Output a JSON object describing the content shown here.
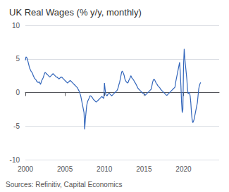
{
  "chart_data": {
    "type": "line",
    "title": "UK Real Wages (% y/y, monthly)",
    "annotation": "Sources: Refinitiv, Capital Economics",
    "color": "#3366bb",
    "grid": true,
    "xlim": [
      2000.0,
      2024.5
    ],
    "xticks": [
      2000,
      2005,
      2010,
      2015,
      2020
    ],
    "ylim": [
      -10,
      10
    ],
    "yticks": [
      -10,
      -5,
      0,
      5,
      10
    ],
    "x": [
      2000,
      2000.0833333333333,
      2000.1666666666667,
      2000.25,
      2000.3333333333333,
      2000.4166666666667,
      2000.5,
      2000.5833333333333,
      2000.6666666666667,
      2000.75,
      2000.8333333333333,
      2000.9166666666667,
      2001,
      2001.0833333333333,
      2001.1666666666667,
      2001.25,
      2001.3333333333333,
      2001.4166666666667,
      2001.5,
      2001.5833333333333,
      2001.6666666666667,
      2001.75,
      2001.8333333333333,
      2001.9166666666667,
      2002,
      2002.0833333333333,
      2002.1666666666667,
      2002.25,
      2002.3333333333333,
      2002.4166666666667,
      2002.5,
      2002.5833333333333,
      2002.6666666666667,
      2002.75,
      2002.8333333333333,
      2002.9166666666667,
      2003,
      2003.0833333333333,
      2003.1666666666667,
      2003.25,
      2003.3333333333333,
      2003.4166666666667,
      2003.5,
      2003.5833333333333,
      2003.6666666666667,
      2003.75,
      2003.8333333333333,
      2003.9166666666667,
      2004,
      2004.0833333333333,
      2004.1666666666667,
      2004.25,
      2004.3333333333333,
      2004.4166666666667,
      2004.5,
      2004.5833333333333,
      2004.6666666666667,
      2004.75,
      2004.8333333333333,
      2004.9166666666667,
      2005,
      2005.0833333333333,
      2005.1666666666667,
      2005.25,
      2005.3333333333333,
      2005.4166666666667,
      2005.5,
      2005.5833333333333,
      2005.6666666666667,
      2005.75,
      2005.8333333333333,
      2005.9166666666667,
      2006,
      2006.0833333333333,
      2006.1666666666667,
      2006.25,
      2006.3333333333333,
      2006.4166666666667,
      2006.5,
      2006.5833333333333,
      2006.6666666666667,
      2006.75,
      2006.8333333333333,
      2006.9166666666667,
      2007,
      2007.0833333333333,
      2007.1666666666667,
      2007.25,
      2007.3333333333333,
      2007.4166666666667,
      2007.5,
      2007.5833333333333,
      2007.6666666666667,
      2007.75,
      2007.8333333333333,
      2007.9166666666667,
      2008,
      2008.0833333333333,
      2008.1666666666667,
      2008.25,
      2008.3333333333333,
      2008.4166666666667,
      2008.5,
      2008.5833333333333,
      2008.6666666666667,
      2008.75,
      2008.8333333333333,
      2008.9166666666667,
      2009,
      2009.0833333333333,
      2009.1666666666667,
      2009.25,
      2009.3333333333333,
      2009.4166666666667,
      2009.5,
      2009.5833333333333,
      2009.6666666666667,
      2009.75,
      2009.8333333333333,
      2009.9166666666667,
      2010,
      2010.0833333333333,
      2010.1666666666667,
      2010.25,
      2010.3333333333333,
      2010.4166666666667,
      2010.5,
      2010.5833333333333,
      2010.6666666666667,
      2010.75,
      2010.8333333333333,
      2010.9166666666667,
      2011,
      2011.0833333333333,
      2011.1666666666667,
      2011.25,
      2011.3333333333333,
      2011.4166666666667,
      2011.5,
      2011.5833333333333,
      2011.6666666666667,
      2011.75,
      2011.8333333333333,
      2011.9166666666667,
      2012,
      2012.0833333333333,
      2012.1666666666667,
      2012.25,
      2012.3333333333333,
      2012.4166666666667,
      2012.5,
      2012.5833333333333,
      2012.6666666666667,
      2012.75,
      2012.8333333333333,
      2012.9166666666667,
      2013,
      2013.0833333333333,
      2013.1666666666667,
      2013.25,
      2013.3333333333333,
      2013.4166666666667,
      2013.5,
      2013.5833333333333,
      2013.6666666666667,
      2013.75,
      2013.8333333333333,
      2013.9166666666667,
      2014,
      2014.0833333333333,
      2014.1666666666667,
      2014.25,
      2014.3333333333333,
      2014.4166666666667,
      2014.5,
      2014.5833333333333,
      2014.6666666666667,
      2014.75,
      2014.8333333333333,
      2014.9166666666667,
      2015,
      2015.0833333333333,
      2015.1666666666667,
      2015.25,
      2015.3333333333333,
      2015.4166666666667,
      2015.5,
      2015.5833333333333,
      2015.6666666666667,
      2015.75,
      2015.8333333333333,
      2015.9166666666667,
      2016,
      2016.0833333333333,
      2016.1666666666667,
      2016.25,
      2016.3333333333333,
      2016.4166666666667,
      2016.5,
      2016.5833333333333,
      2016.6666666666667,
      2016.75,
      2016.8333333333333,
      2016.9166666666667,
      2017,
      2017.0833333333333,
      2017.1666666666667,
      2017.25,
      2017.3333333333333,
      2017.4166666666667,
      2017.5,
      2017.5833333333333,
      2017.6666666666667,
      2017.75,
      2017.8333333333333,
      2017.9166666666667,
      2018,
      2018.0833333333333,
      2018.1666666666667,
      2018.25,
      2018.3333333333333,
      2018.4166666666667,
      2018.5,
      2018.5833333333333,
      2018.6666666666667,
      2018.75,
      2018.8333333333333,
      2018.9166666666667,
      2019,
      2019.0833333333333,
      2019.1666666666667,
      2019.25,
      2019.3333333333333,
      2019.4166666666667,
      2019.5,
      2019.5833333333333,
      2019.6666666666667,
      2019.75,
      2019.8333333333333,
      2019.9166666666667,
      2020,
      2020.0833333333333,
      2020.1666666666667,
      2020.25,
      2020.3333333333333,
      2020.4166666666667,
      2020.5,
      2020.5833333333333,
      2020.6666666666667,
      2020.75,
      2020.8333333333333,
      2020.9166666666667,
      2021,
      2021.0833333333333,
      2021.1666666666667,
      2021.25,
      2021.3333333333333,
      2021.4166666666667,
      2021.5,
      2021.5833333333333,
      2021.6666666666667,
      2021.75,
      2021.8333333333333,
      2021.9166666666667,
      2022,
      2022.0833333333333,
      2022.1666666666667
    ],
    "values": [
      4.8,
      5.3,
      5.2,
      5.0,
      4.6,
      4.2,
      3.8,
      3.5,
      3.3,
      3.1,
      3.0,
      2.8,
      2.5,
      2.3,
      2.1,
      2.0,
      1.9,
      1.7,
      1.6,
      1.5,
      1.5,
      1.6,
      1.4,
      1.2,
      1.5,
      1.8,
      2.0,
      2.2,
      2.5,
      2.8,
      3.0,
      2.9,
      2.8,
      2.7,
      2.6,
      2.5,
      2.4,
      2.3,
      2.4,
      2.5,
      2.6,
      2.7,
      2.8,
      2.7,
      2.6,
      2.5,
      2.4,
      2.3,
      2.3,
      2.2,
      2.1,
      2.0,
      2.1,
      2.2,
      2.3,
      2.3,
      2.2,
      2.1,
      2.0,
      1.9,
      1.8,
      1.7,
      1.6,
      1.5,
      1.4,
      1.5,
      1.6,
      1.7,
      1.8,
      1.7,
      1.6,
      1.5,
      1.4,
      1.3,
      1.2,
      1.1,
      1.0,
      0.9,
      0.8,
      0.7,
      0.5,
      0.3,
      0.1,
      -0.2,
      -0.5,
      -1.0,
      -1.5,
      -2.0,
      -2.5,
      -3.0,
      -5.5,
      -4.0,
      -3.0,
      -2.0,
      -1.5,
      -1.2,
      -1.0,
      -0.8,
      -0.5,
      -0.5,
      -0.6,
      -0.7,
      -0.8,
      -1.0,
      -1.1,
      -1.2,
      -1.3,
      -1.4,
      -1.4,
      -1.3,
      -1.2,
      -1.1,
      -1.0,
      -0.9,
      -0.8,
      -0.7,
      -0.6,
      -0.7,
      -0.8,
      -0.9,
      1.4,
      0.5,
      -0.3,
      -0.4,
      -0.5,
      -0.3,
      -0.2,
      -0.1,
      -0.2,
      -0.3,
      -0.4,
      -0.5,
      -0.4,
      -0.3,
      -0.2,
      -0.1,
      0.0,
      0.1,
      0.2,
      0.3,
      0.5,
      0.8,
      1.2,
      1.5,
      2.0,
      2.5,
      3.0,
      3.2,
      3.0,
      2.8,
      2.5,
      2.0,
      1.8,
      1.6,
      1.5,
      1.4,
      1.5,
      1.8,
      2.0,
      2.2,
      2.5,
      2.3,
      2.1,
      2.0,
      1.9,
      1.7,
      1.5,
      1.4,
      1.2,
      1.0,
      0.8,
      0.6,
      0.5,
      0.4,
      0.3,
      0.2,
      0.1,
      0.0,
      -0.1,
      -0.2,
      -0.2,
      -0.3,
      -0.4,
      -0.3,
      -0.2,
      -0.1,
      0.0,
      0.1,
      0.2,
      0.3,
      0.4,
      0.5,
      1.0,
      1.5,
      1.8,
      2.0,
      1.9,
      1.7,
      1.5,
      1.3,
      1.2,
      1.0,
      0.9,
      0.8,
      0.7,
      0.5,
      0.4,
      0.3,
      0.2,
      0.1,
      0.0,
      -0.1,
      -0.2,
      -0.3,
      -0.4,
      -0.4,
      -0.3,
      -0.2,
      -0.1,
      0.0,
      0.1,
      0.2,
      0.3,
      0.4,
      0.5,
      0.6,
      0.7,
      0.8,
      1.5,
      2.0,
      2.5,
      3.0,
      3.5,
      4.0,
      4.5,
      3.0,
      1.0,
      -1.5,
      -3.0,
      -2.5,
      4.0,
      6.5,
      5.0,
      4.0,
      3.0,
      2.0,
      0.5,
      -0.2,
      0.0,
      0.0,
      -0.5,
      -1.5,
      -3.0,
      -4.0,
      -4.5,
      -4.3,
      -4.0,
      -3.5,
      -3.0,
      -2.5,
      -2.0,
      -1.5,
      -0.5,
      0.5,
      1.0,
      1.3,
      1.5
    ]
  }
}
